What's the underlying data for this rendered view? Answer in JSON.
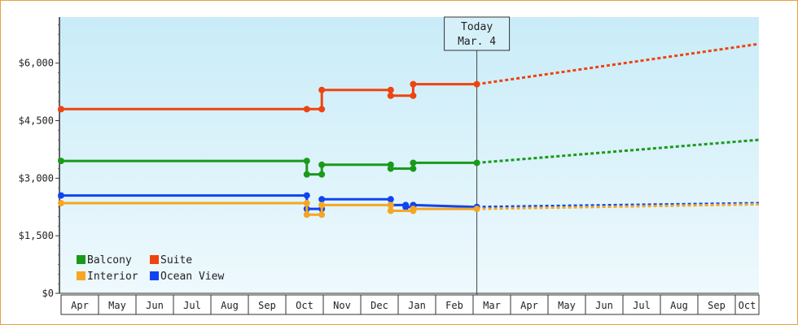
{
  "chart_data": {
    "type": "line",
    "title": "",
    "xlabel": "",
    "ylabel": "",
    "ylim": [
      0,
      7200
    ],
    "y_ticks": [
      {
        "value": 0,
        "label": "$0"
      },
      {
        "value": 1500,
        "label": "$1,500"
      },
      {
        "value": 3000,
        "label": "$3,000"
      },
      {
        "value": 4500,
        "label": "$4,500"
      },
      {
        "value": 6000,
        "label": "$6,000"
      }
    ],
    "x_months": [
      "Apr",
      "May",
      "Jun",
      "Jul",
      "Aug",
      "Sep",
      "Oct",
      "Nov",
      "Dec",
      "Jan",
      "Feb",
      "Mar",
      "Apr",
      "May",
      "Jun",
      "Jul",
      "Aug",
      "Sep",
      "Oct"
    ],
    "today_label": "Today",
    "today_date": "Mar. 4",
    "today_x": 11.1,
    "x_end": 18.75,
    "legend": {
      "placement": "bottom-left",
      "items": [
        {
          "name": "Balcony",
          "color": "#1a9a1a"
        },
        {
          "name": "Suite",
          "color": "#ee4411"
        },
        {
          "name": "Interior",
          "color": "#f5a623"
        },
        {
          "name": "Ocean View",
          "color": "#1144ee"
        }
      ]
    },
    "grid": false,
    "background": "#d3eef8",
    "series": [
      {
        "name": "Suite",
        "color": "#ee4411",
        "points": [
          [
            0.0,
            4800
          ],
          [
            6.56,
            4800
          ],
          [
            6.96,
            4800
          ],
          [
            6.96,
            5300
          ],
          [
            8.8,
            5300
          ],
          [
            8.8,
            5150
          ],
          [
            9.4,
            5150
          ],
          [
            9.4,
            5450
          ],
          [
            11.1,
            5450
          ]
        ],
        "markers": [
          [
            0.0,
            4800
          ],
          [
            6.56,
            4800
          ],
          [
            6.96,
            4800
          ],
          [
            6.96,
            5300
          ],
          [
            8.8,
            5300
          ],
          [
            8.8,
            5150
          ],
          [
            9.4,
            5150
          ],
          [
            9.4,
            5450
          ],
          [
            11.1,
            5450
          ]
        ],
        "forecast": [
          [
            11.1,
            5450
          ],
          [
            18.75,
            6500
          ]
        ]
      },
      {
        "name": "Balcony",
        "color": "#1a9a1a",
        "points": [
          [
            0.0,
            3450
          ],
          [
            6.56,
            3450
          ],
          [
            6.56,
            3100
          ],
          [
            6.96,
            3100
          ],
          [
            6.96,
            3350
          ],
          [
            8.8,
            3350
          ],
          [
            8.8,
            3250
          ],
          [
            9.4,
            3250
          ],
          [
            9.4,
            3400
          ],
          [
            11.1,
            3400
          ]
        ],
        "markers": [
          [
            0.0,
            3450
          ],
          [
            6.56,
            3450
          ],
          [
            6.56,
            3100
          ],
          [
            6.96,
            3100
          ],
          [
            6.96,
            3350
          ],
          [
            8.8,
            3350
          ],
          [
            8.8,
            3250
          ],
          [
            9.4,
            3250
          ],
          [
            9.4,
            3400
          ],
          [
            11.1,
            3400
          ]
        ],
        "forecast": [
          [
            11.1,
            3400
          ],
          [
            18.75,
            4000
          ]
        ]
      },
      {
        "name": "Ocean View",
        "color": "#1144ee",
        "points": [
          [
            0.0,
            2550
          ],
          [
            6.56,
            2550
          ],
          [
            6.56,
            2200
          ],
          [
            6.96,
            2200
          ],
          [
            6.96,
            2450
          ],
          [
            8.8,
            2450
          ],
          [
            8.8,
            2300
          ],
          [
            9.2,
            2300
          ],
          [
            9.2,
            2250
          ],
          [
            9.4,
            2250
          ],
          [
            9.4,
            2300
          ],
          [
            11.1,
            2250
          ]
        ],
        "markers": [
          [
            0.0,
            2550
          ],
          [
            6.56,
            2550
          ],
          [
            6.56,
            2200
          ],
          [
            6.96,
            2200
          ],
          [
            6.96,
            2450
          ],
          [
            8.8,
            2450
          ],
          [
            8.8,
            2300
          ],
          [
            9.2,
            2300
          ],
          [
            9.2,
            2250
          ],
          [
            9.4,
            2250
          ],
          [
            9.4,
            2300
          ],
          [
            11.1,
            2250
          ]
        ],
        "forecast": [
          [
            11.1,
            2250
          ],
          [
            18.75,
            2350
          ]
        ]
      },
      {
        "name": "Interior",
        "color": "#f5a623",
        "points": [
          [
            0.0,
            2350
          ],
          [
            6.56,
            2350
          ],
          [
            6.56,
            2050
          ],
          [
            6.96,
            2050
          ],
          [
            6.96,
            2300
          ],
          [
            8.8,
            2300
          ],
          [
            8.8,
            2150
          ],
          [
            9.4,
            2150
          ],
          [
            9.4,
            2200
          ],
          [
            11.1,
            2200
          ]
        ],
        "markers": [
          [
            0.0,
            2350
          ],
          [
            6.56,
            2350
          ],
          [
            6.56,
            2050
          ],
          [
            6.96,
            2050
          ],
          [
            6.96,
            2300
          ],
          [
            8.8,
            2300
          ],
          [
            8.8,
            2150
          ],
          [
            9.4,
            2150
          ],
          [
            9.4,
            2200
          ],
          [
            11.1,
            2200
          ]
        ],
        "forecast": [
          [
            11.1,
            2200
          ],
          [
            18.75,
            2320
          ]
        ]
      }
    ]
  }
}
